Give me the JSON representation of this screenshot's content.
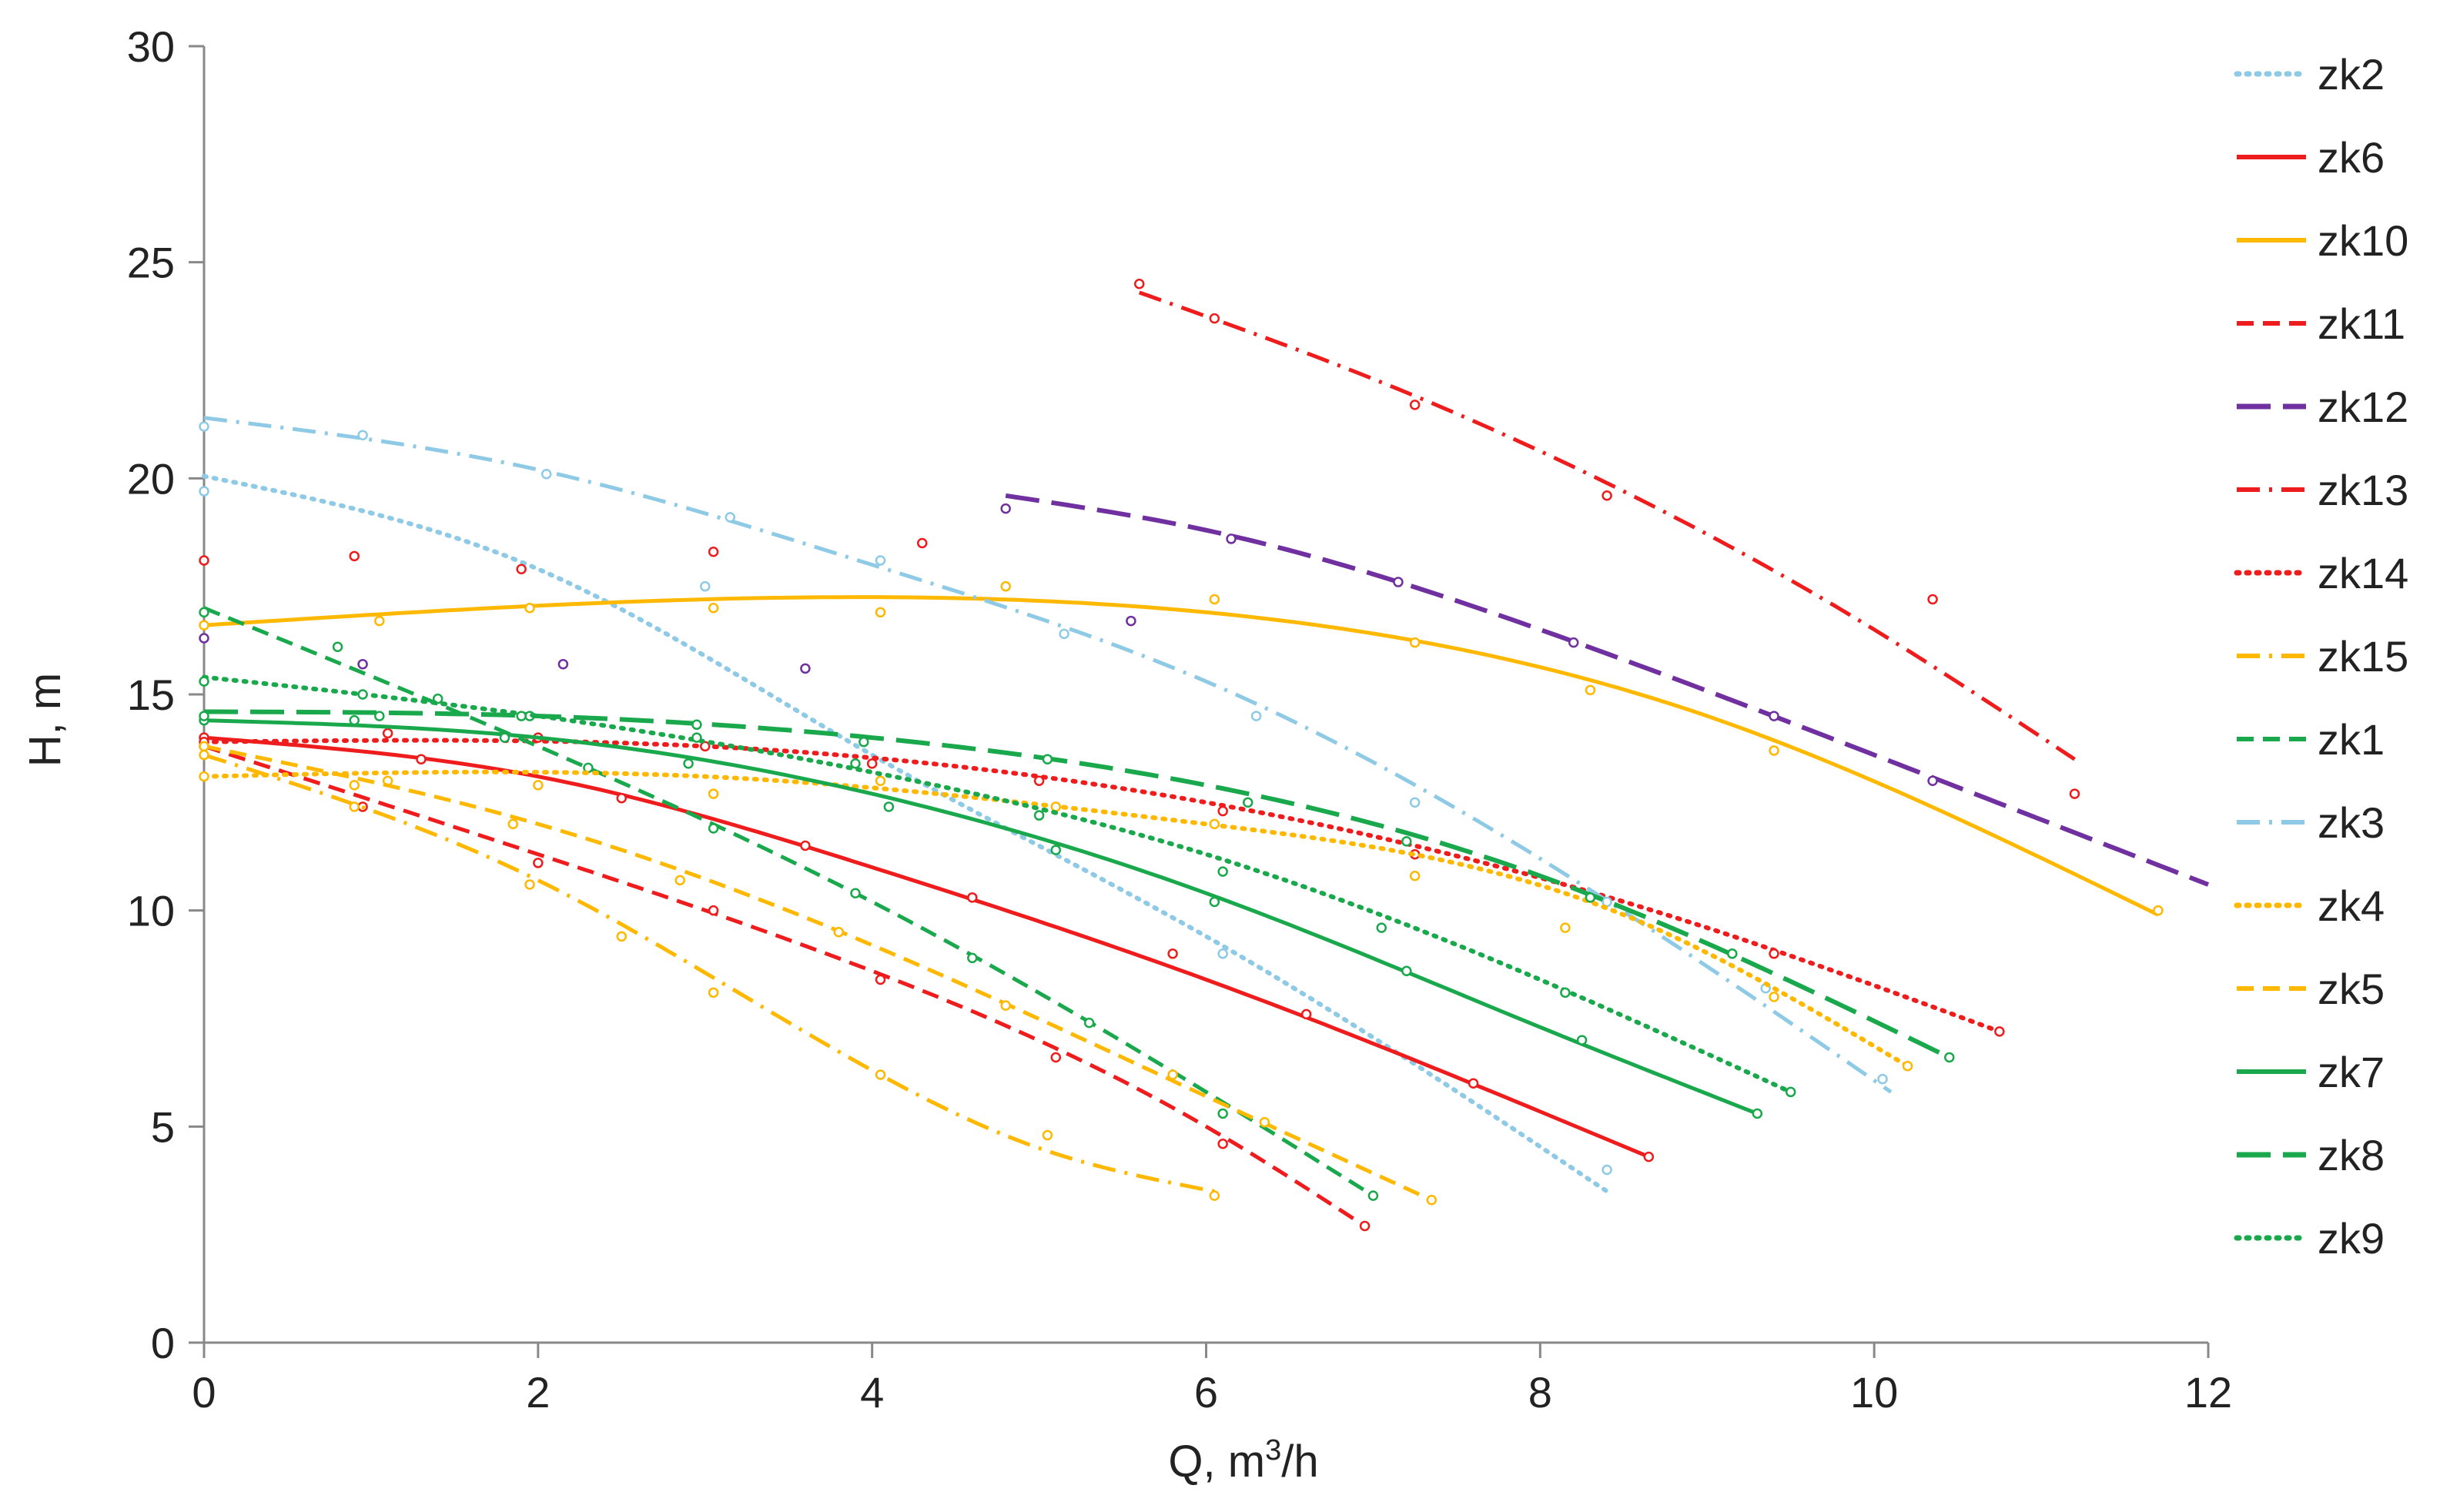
{
  "chart_data": {
    "type": "line",
    "title": "",
    "xlabel": "Q, m",
    "xlabel_sup": "3",
    "xlabel_tail": "/h",
    "ylabel": "H, m",
    "xlim": [
      0,
      12
    ],
    "ylim": [
      0,
      30
    ],
    "xticks": [
      "0",
      "2",
      "4",
      "6",
      "8",
      "10",
      "12"
    ],
    "yticks": [
      "0",
      "5",
      "10",
      "15",
      "20",
      "25",
      "30"
    ],
    "grid": false,
    "legend_position": "right",
    "series": [
      {
        "name": "zk2",
        "color": "#8ECAE6",
        "dash": "dot",
        "start": 0,
        "end": 8.4,
        "curve": [
          [
            0,
            20.05
          ],
          [
            2,
            17.9
          ],
          [
            4,
            13.6
          ],
          [
            6,
            9.4
          ],
          [
            8.4,
            3.5
          ]
        ],
        "points": [
          [
            0,
            19.7
          ],
          [
            3,
            17.5
          ],
          [
            6.1,
            9.0
          ],
          [
            8.4,
            4.0
          ]
        ]
      },
      {
        "name": "zk6",
        "color": "#EE1C1C",
        "dash": "solid",
        "start": 0,
        "end": 8.65,
        "curve": [
          [
            0,
            14.0
          ],
          [
            2,
            13.1
          ],
          [
            4,
            11.0
          ],
          [
            6,
            8.4
          ],
          [
            8.65,
            4.3
          ]
        ],
        "points": [
          [
            0,
            14.0
          ],
          [
            1.3,
            13.5
          ],
          [
            2.5,
            12.6
          ],
          [
            3.6,
            11.5
          ],
          [
            4.6,
            10.3
          ],
          [
            5.8,
            9.0
          ],
          [
            6.6,
            7.6
          ],
          [
            7.6,
            6.0
          ],
          [
            8.65,
            4.3
          ]
        ]
      },
      {
        "name": "zk10",
        "color": "#FFB800",
        "dash": "solid",
        "start": 0,
        "end": 11.7,
        "curve": [
          [
            0,
            16.6
          ],
          [
            3,
            17.2
          ],
          [
            6,
            16.9
          ],
          [
            9,
            14.5
          ],
          [
            11.7,
            9.9
          ]
        ],
        "points": [
          [
            0,
            16.6
          ],
          [
            1.05,
            16.7
          ],
          [
            1.95,
            17.0
          ],
          [
            3.05,
            17.0
          ],
          [
            4.05,
            16.9
          ],
          [
            4.8,
            17.5
          ],
          [
            6.05,
            17.2
          ],
          [
            7.25,
            16.2
          ],
          [
            8.3,
            15.1
          ],
          [
            9.4,
            13.7
          ],
          [
            11.7,
            10.0
          ]
        ]
      },
      {
        "name": "zk11",
        "color": "#EE1C1C",
        "dash": "dash",
        "start": 0,
        "end": 6.95,
        "curve": [
          [
            0,
            13.8
          ],
          [
            2,
            11.3
          ],
          [
            4,
            8.6
          ],
          [
            6,
            5.0
          ],
          [
            6.95,
            2.7
          ]
        ],
        "points": [
          [
            0,
            13.8
          ],
          [
            0.95,
            12.4
          ],
          [
            2.0,
            11.1
          ],
          [
            3.05,
            10.0
          ],
          [
            4.05,
            8.4
          ],
          [
            5.1,
            6.6
          ],
          [
            6.1,
            4.6
          ],
          [
            6.95,
            2.7
          ]
        ]
      },
      {
        "name": "zk12",
        "color": "#7030A0",
        "dash": "longdash",
        "start": 4.8,
        "end": 12,
        "curve": [
          [
            4.8,
            19.6
          ],
          [
            6,
            18.8
          ],
          [
            8,
            16.5
          ],
          [
            10,
            13.6
          ],
          [
            12,
            10.6
          ]
        ],
        "points": [
          [
            0,
            16.3
          ],
          [
            0.95,
            15.7
          ],
          [
            2.15,
            15.7
          ],
          [
            3.6,
            15.6
          ],
          [
            4.8,
            19.3
          ],
          [
            5.55,
            16.7
          ],
          [
            6.15,
            18.6
          ],
          [
            7.15,
            17.6
          ],
          [
            8.2,
            16.2
          ],
          [
            9.4,
            14.5
          ],
          [
            10.35,
            13.0
          ]
        ]
      },
      {
        "name": "zk13",
        "color": "#EE1C1C",
        "dash": "dashdot",
        "start": 5.6,
        "end": 11.2,
        "curve": [
          [
            5.6,
            24.3
          ],
          [
            7,
            22.3
          ],
          [
            8.5,
            19.7
          ],
          [
            10,
            16.5
          ],
          [
            11.2,
            13.5
          ]
        ],
        "points": [
          [
            0,
            18.1
          ],
          [
            0.9,
            18.2
          ],
          [
            1.9,
            17.9
          ],
          [
            3.05,
            18.3
          ],
          [
            4.3,
            18.5
          ],
          [
            5.6,
            24.5
          ],
          [
            6.05,
            23.7
          ],
          [
            7.25,
            21.7
          ],
          [
            8.4,
            19.6
          ],
          [
            10.35,
            17.2
          ],
          [
            11.2,
            12.7
          ]
        ]
      },
      {
        "name": "zk14",
        "color": "#EE1C1C",
        "dash": "dot",
        "start": 0,
        "end": 10.75,
        "curve": [
          [
            0,
            13.9
          ],
          [
            3,
            13.8
          ],
          [
            6,
            12.5
          ],
          [
            9,
            9.6
          ],
          [
            10.75,
            7.2
          ]
        ],
        "points": [
          [
            0,
            13.9
          ],
          [
            1.1,
            14.1
          ],
          [
            2.0,
            14.0
          ],
          [
            3.0,
            13.8
          ],
          [
            4.0,
            13.4
          ],
          [
            5.0,
            13.0
          ],
          [
            6.1,
            12.3
          ],
          [
            7.25,
            11.3
          ],
          [
            8.3,
            10.3
          ],
          [
            9.4,
            9.0
          ],
          [
            10.75,
            7.2
          ]
        ]
      },
      {
        "name": "zk15",
        "color": "#FFB800",
        "dash": "dashdot",
        "start": 0,
        "end": 6.05,
        "curve": [
          [
            0,
            13.6
          ],
          [
            2,
            10.7
          ],
          [
            4,
            6.3
          ],
          [
            5,
            4.5
          ],
          [
            6.05,
            3.5
          ]
        ],
        "points": [
          [
            0,
            13.6
          ],
          [
            0.9,
            12.4
          ],
          [
            1.95,
            10.6
          ],
          [
            2.5,
            9.4
          ],
          [
            3.05,
            8.1
          ],
          [
            4.05,
            6.2
          ],
          [
            5.05,
            4.8
          ],
          [
            6.05,
            3.4
          ]
        ]
      },
      {
        "name": "zk1",
        "color": "#1AA84C",
        "dash": "dash",
        "start": 0,
        "end": 7.0,
        "curve": [
          [
            0,
            17.0
          ],
          [
            2,
            13.8
          ],
          [
            4,
            10.2
          ],
          [
            6,
            5.8
          ],
          [
            7.0,
            3.4
          ]
        ],
        "points": [
          [
            0,
            16.9
          ],
          [
            0.8,
            16.1
          ],
          [
            1.4,
            14.9
          ],
          [
            2.3,
            13.3
          ],
          [
            3.05,
            11.9
          ],
          [
            3.9,
            10.4
          ],
          [
            4.6,
            8.9
          ],
          [
            5.3,
            7.4
          ],
          [
            6.1,
            5.3
          ],
          [
            7.0,
            3.4
          ]
        ]
      },
      {
        "name": "zk3",
        "color": "#8ECAE6",
        "dash": "dashdot",
        "start": 0,
        "end": 10.1,
        "curve": [
          [
            0,
            21.4
          ],
          [
            2,
            20.2
          ],
          [
            4,
            18.0
          ],
          [
            6,
            15.3
          ],
          [
            8,
            11.2
          ],
          [
            10.1,
            5.8
          ]
        ],
        "points": [
          [
            0,
            21.2
          ],
          [
            0.95,
            21.0
          ],
          [
            2.05,
            20.1
          ],
          [
            3.15,
            19.1
          ],
          [
            4.05,
            18.1
          ],
          [
            5.15,
            16.4
          ],
          [
            6.3,
            14.5
          ],
          [
            7.25,
            12.5
          ],
          [
            8.4,
            10.2
          ],
          [
            9.35,
            8.2
          ],
          [
            10.05,
            6.1
          ]
        ]
      },
      {
        "name": "zk4",
        "color": "#FFB800",
        "dash": "dot",
        "start": 0,
        "end": 10.2,
        "curve": [
          [
            0,
            13.1
          ],
          [
            3,
            13.1
          ],
          [
            6,
            12.0
          ],
          [
            8.5,
            9.9
          ],
          [
            10.2,
            6.4
          ]
        ],
        "points": [
          [
            0,
            13.1
          ],
          [
            1.1,
            13.0
          ],
          [
            2.0,
            12.9
          ],
          [
            3.05,
            12.7
          ],
          [
            4.05,
            13.0
          ],
          [
            5.1,
            12.4
          ],
          [
            6.05,
            12.0
          ],
          [
            7.25,
            10.8
          ],
          [
            8.15,
            9.6
          ],
          [
            9.4,
            8.0
          ],
          [
            10.2,
            6.4
          ]
        ]
      },
      {
        "name": "zk5",
        "color": "#FFB800",
        "dash": "dash",
        "start": 0,
        "end": 7.35,
        "curve": [
          [
            0,
            13.8
          ],
          [
            2,
            12.0
          ],
          [
            4,
            9.2
          ],
          [
            6,
            5.7
          ],
          [
            7.35,
            3.3
          ]
        ],
        "points": [
          [
            0,
            13.8
          ],
          [
            0.9,
            12.9
          ],
          [
            1.85,
            12.0
          ],
          [
            2.85,
            10.7
          ],
          [
            3.8,
            9.5
          ],
          [
            4.8,
            7.8
          ],
          [
            5.8,
            6.2
          ],
          [
            6.35,
            5.1
          ],
          [
            7.35,
            3.3
          ]
        ]
      },
      {
        "name": "zk7",
        "color": "#1AA84C",
        "dash": "solid",
        "start": 0,
        "end": 9.3,
        "curve": [
          [
            0,
            14.4
          ],
          [
            2,
            14.0
          ],
          [
            4,
            12.7
          ],
          [
            6,
            10.4
          ],
          [
            8,
            7.3
          ],
          [
            9.3,
            5.3
          ]
        ],
        "points": [
          [
            0,
            14.4
          ],
          [
            0.9,
            14.4
          ],
          [
            1.8,
            14.0
          ],
          [
            2.9,
            13.4
          ],
          [
            4.1,
            12.4
          ],
          [
            5.1,
            11.4
          ],
          [
            6.05,
            10.2
          ],
          [
            7.2,
            8.6
          ],
          [
            8.25,
            7.0
          ],
          [
            9.3,
            5.3
          ]
        ]
      },
      {
        "name": "zk8",
        "color": "#1AA84C",
        "dash": "longdash",
        "start": 0,
        "end": 10.45,
        "curve": [
          [
            0,
            14.6
          ],
          [
            2,
            14.5
          ],
          [
            4,
            14.0
          ],
          [
            6,
            12.9
          ],
          [
            8,
            10.8
          ],
          [
            10.45,
            6.6
          ]
        ],
        "points": [
          [
            0,
            14.5
          ],
          [
            1.05,
            14.5
          ],
          [
            1.95,
            14.5
          ],
          [
            2.95,
            14.3
          ],
          [
            3.95,
            13.9
          ],
          [
            5.05,
            13.5
          ],
          [
            6.25,
            12.5
          ],
          [
            7.2,
            11.6
          ],
          [
            8.3,
            10.3
          ],
          [
            9.15,
            9.0
          ],
          [
            10.45,
            6.6
          ]
        ]
      },
      {
        "name": "zk9",
        "color": "#1AA84C",
        "dash": "dot",
        "start": 0,
        "end": 9.5,
        "curve": [
          [
            0,
            15.4
          ],
          [
            2,
            14.5
          ],
          [
            4,
            13.2
          ],
          [
            6,
            11.3
          ],
          [
            8,
            8.4
          ],
          [
            9.5,
            5.8
          ]
        ],
        "points": [
          [
            0,
            15.3
          ],
          [
            0.95,
            15.0
          ],
          [
            1.9,
            14.5
          ],
          [
            2.95,
            14.0
          ],
          [
            3.9,
            13.4
          ],
          [
            5.0,
            12.2
          ],
          [
            6.1,
            10.9
          ],
          [
            7.05,
            9.6
          ],
          [
            8.15,
            8.1
          ],
          [
            9.5,
            5.8
          ]
        ]
      }
    ]
  }
}
